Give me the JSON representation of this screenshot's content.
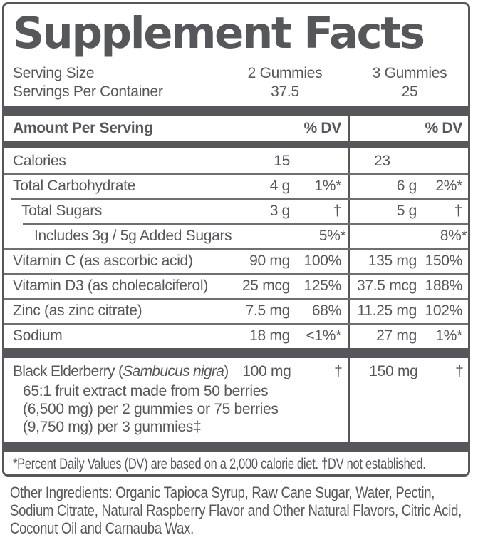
{
  "colors": {
    "ink": "#55575a",
    "separator": "#6e6f72"
  },
  "title": "Supplement Facts",
  "serving": {
    "size_label": "Serving Size",
    "per_container_label": "Servings Per Container",
    "col1_size": "2 Gummies",
    "col1_servings": "37.5",
    "col2_size": "3 Gummies",
    "col2_servings": "25"
  },
  "table": {
    "header": {
      "amount_label": "Amount Per Serving",
      "dv_label_1": "% DV",
      "dv_label_2": "% DV"
    },
    "rows": [
      {
        "name": "Calories",
        "amt1": "15",
        "dv1": "",
        "amt2": "23",
        "dv2": ""
      },
      {
        "name": "Total Carbohydrate",
        "amt1": "4 g",
        "dv1": "1%*",
        "amt2": "6 g",
        "dv2": "2%*"
      },
      {
        "name": "Total Sugars",
        "amt1": "3 g",
        "dv1": "†",
        "amt2": "5 g",
        "dv2": "†"
      },
      {
        "name": "Includes 3g / 5g Added Sugars",
        "amt1": "",
        "dv1": "5%*",
        "amt2": "",
        "dv2": "8%*"
      },
      {
        "name": "Vitamin C (as ascorbic acid)",
        "amt1": "90 mg",
        "dv1": "100%",
        "amt2": "135 mg",
        "dv2": "150%"
      },
      {
        "name": "Vitamin D3 (as cholecalciferol)",
        "amt1": "25 mcg",
        "dv1": "125%",
        "amt2": "37.5 mcg",
        "dv2": "188%"
      },
      {
        "name": "Zinc (as zinc citrate)",
        "amt1": "7.5 mg",
        "dv1": "68%",
        "amt2": "11.25 mg",
        "dv2": "102%"
      },
      {
        "name": "Sodium",
        "amt1": "18 mg",
        "dv1": "<1%*",
        "amt2": "27 mg",
        "dv2": "1%*"
      }
    ],
    "elderberry": {
      "name_open": "Black Elderberry (",
      "name_italic": "Sambucus nigra",
      "name_close": ")",
      "amt1": "100 mg",
      "dv1": "†",
      "amt2": "150 mg",
      "dv2": "†",
      "desc_lines": [
        "65:1 fruit extract made from 50 berries",
        "(6,500 mg) per 2 gummies or 75 berries",
        "(9,750 mg) per 3 gummies‡"
      ]
    }
  },
  "footnote": "*Percent Daily Values (DV) are based on a 2,000 calorie diet. †DV not established.",
  "other_ingredients": {
    "lines": [
      "Other Ingredients: Organic Tapioca Syrup, Raw Cane Sugar, Water, Pectin,",
      "Sodium Citrate, Natural Raspberry Flavor and Other Natural Flavors, Citric Acid,",
      "Coconut Oil and Carnauba Wax."
    ]
  }
}
